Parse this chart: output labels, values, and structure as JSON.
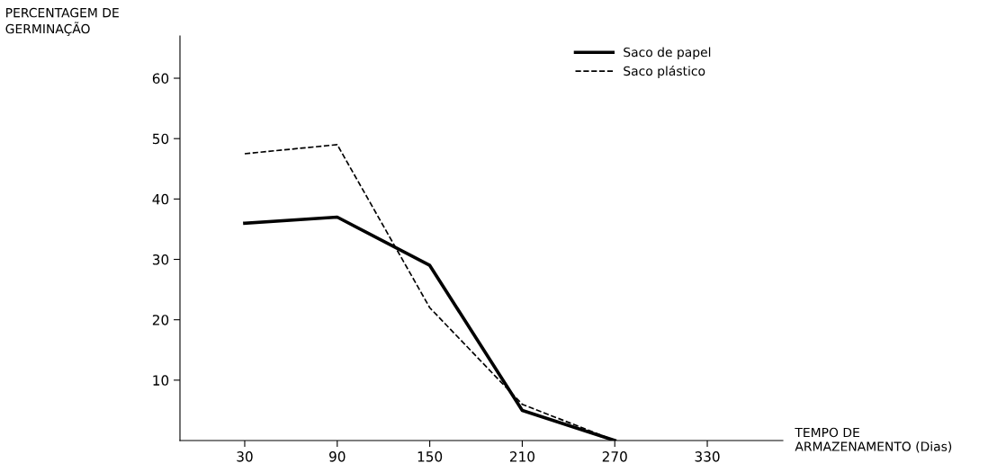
{
  "chart_data": {
    "type": "line",
    "ylabel": "PERCENTAGEM DE\nGERMINAÇÃO",
    "xlabel": "TEMPO DE\nARMAZENAMENTO (Dias)",
    "x": [
      30,
      90,
      150,
      210,
      270
    ],
    "series": [
      {
        "name": "Saco de papel",
        "color": "#000000",
        "line_style": "solid",
        "values": [
          36,
          37,
          29,
          5,
          0
        ]
      },
      {
        "name": "Saco plástico",
        "color": "#000000",
        "line_style": "dashed",
        "values": [
          47.5,
          49,
          22,
          6,
          0
        ]
      }
    ],
    "xlim": [
      -12,
      379
    ],
    "ylim": [
      0,
      67
    ],
    "xticks": [
      30,
      90,
      150,
      210,
      270,
      330
    ],
    "yticks": [
      10,
      20,
      30,
      40,
      50,
      60
    ],
    "grid": false,
    "legend": "top right",
    "marker": "none"
  }
}
